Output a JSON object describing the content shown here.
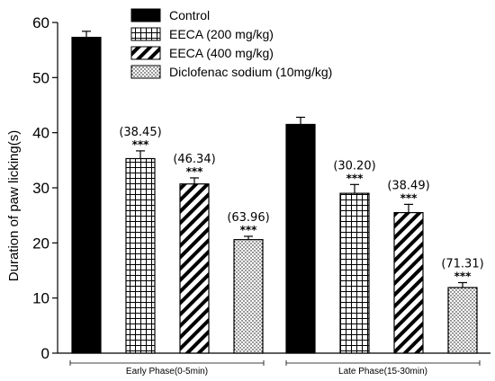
{
  "chart_data": {
    "type": "bar",
    "ylabel": "Duration of paw licking(s)",
    "xlabel": "",
    "ylim": [
      0,
      60
    ],
    "yticks": [
      0,
      10,
      20,
      30,
      40,
      50,
      60
    ],
    "legend_position": "top-center",
    "categories": [
      "Early Phase(0-5min)",
      "Late Phase(15-30min)"
    ],
    "series": [
      {
        "name": "Control",
        "pattern": "solid",
        "color": "#000000",
        "values": [
          57.3,
          41.5
        ],
        "errors": [
          1.1,
          1.3
        ],
        "percent_labels": [
          "",
          ""
        ],
        "significance": [
          "",
          ""
        ]
      },
      {
        "name": "EECA (200 mg/kg)",
        "pattern": "grid",
        "color": "#000000",
        "values": [
          35.3,
          29.0
        ],
        "errors": [
          1.4,
          1.6
        ],
        "percent_labels": [
          "(38.45)",
          "(30.20)"
        ],
        "significance": [
          "***",
          "***"
        ]
      },
      {
        "name": "EECA (400 mg/kg)",
        "pattern": "diagonal",
        "color": "#000000",
        "values": [
          30.7,
          25.5
        ],
        "errors": [
          1.1,
          1.5
        ],
        "percent_labels": [
          "(46.34)",
          "(38.49)"
        ],
        "significance": [
          "***",
          "***"
        ]
      },
      {
        "name": "Diclofenac sodium (10mg/kg)",
        "pattern": "dots",
        "color": "#000000",
        "values": [
          20.6,
          11.9
        ],
        "errors": [
          0.6,
          0.9
        ],
        "percent_labels": [
          "(63.96)",
          "(71.31)"
        ],
        "significance": [
          "***",
          "***"
        ]
      }
    ]
  }
}
